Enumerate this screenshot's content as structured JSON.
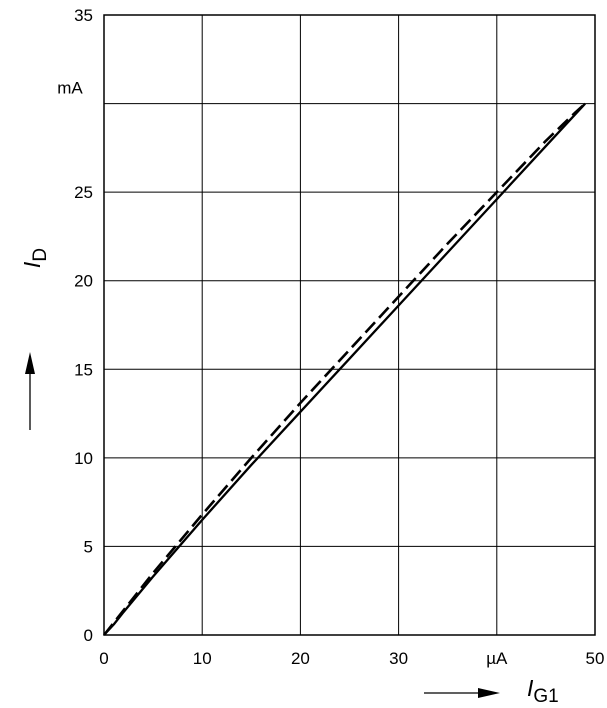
{
  "chart_data": {
    "type": "line",
    "xlim": [
      0,
      50
    ],
    "ylim": [
      0,
      35
    ],
    "x_ticks": [
      {
        "value": 0,
        "label": "0"
      },
      {
        "value": 10,
        "label": "10"
      },
      {
        "value": 20,
        "label": "20"
      },
      {
        "value": 30,
        "label": "30"
      },
      {
        "value": 40,
        "label": "µA"
      },
      {
        "value": 50,
        "label": "50"
      }
    ],
    "y_ticks": [
      {
        "value": 0,
        "label": "0"
      },
      {
        "value": 5,
        "label": "5"
      },
      {
        "value": 10,
        "label": "10"
      },
      {
        "value": 15,
        "label": "15"
      },
      {
        "value": 20,
        "label": "20"
      },
      {
        "value": 25,
        "label": "25"
      },
      {
        "value": 30,
        "label": "mA"
      },
      {
        "value": 35,
        "label": "35"
      }
    ],
    "xlabel": {
      "main": "I",
      "sub": "G1"
    },
    "ylabel": {
      "main": "I",
      "sub": "D"
    },
    "grid": true,
    "series": [
      {
        "style": "solid",
        "x": [
          0,
          1,
          2,
          5,
          10,
          15,
          20,
          25,
          30,
          35,
          40,
          45,
          48,
          49
        ],
        "y": [
          0,
          0.6,
          1.3,
          3.3,
          6.5,
          9.6,
          12.6,
          15.6,
          18.6,
          21.6,
          24.6,
          27.6,
          29.4,
          30
        ]
      },
      {
        "style": "dashed",
        "x": [
          0,
          1,
          2,
          5,
          10,
          15,
          20,
          25,
          30,
          35,
          40,
          45,
          48,
          49
        ],
        "y": [
          0,
          0.7,
          1.4,
          3.5,
          6.8,
          10.0,
          13.1,
          16.1,
          19.1,
          22.1,
          25.0,
          27.9,
          29.5,
          30
        ]
      }
    ]
  }
}
